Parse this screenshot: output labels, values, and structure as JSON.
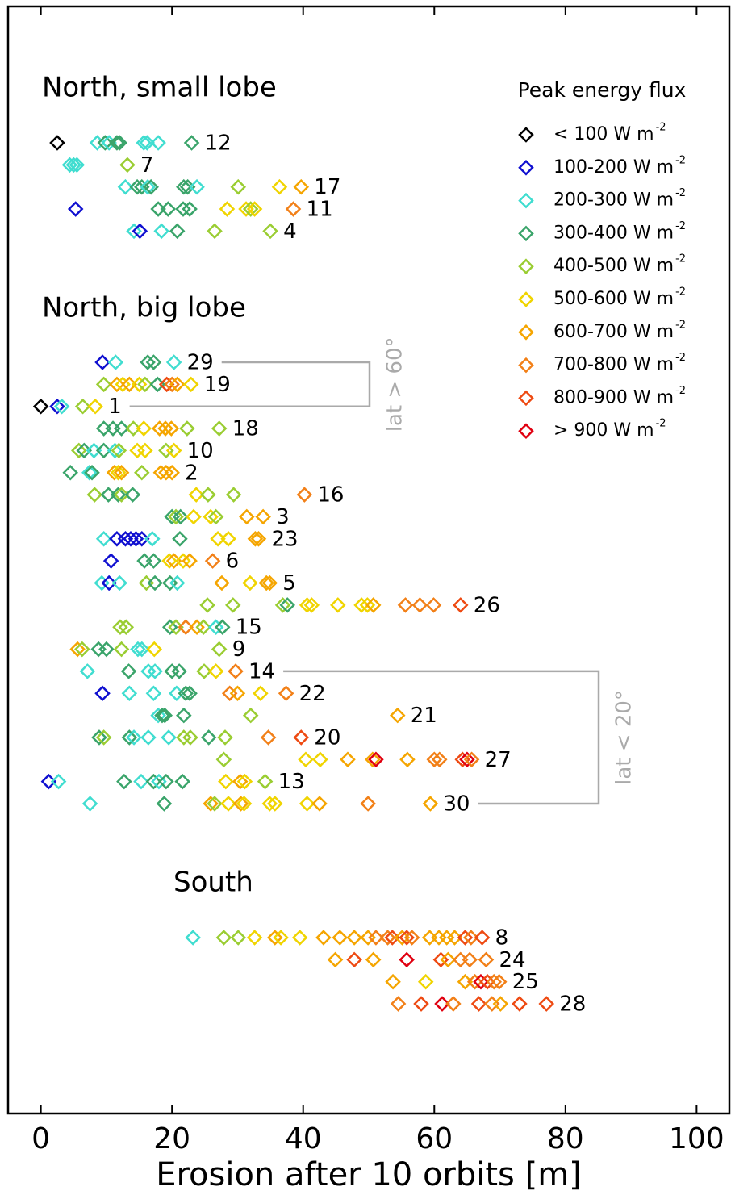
{
  "chart_data": {
    "type": "scatter",
    "xlabel": "Erosion after 10 orbits [m]",
    "xlim": [
      -5,
      105
    ],
    "xticks": [
      0,
      20,
      40,
      60,
      80,
      100
    ],
    "legend": {
      "title": "Peak energy flux",
      "unit_exponent": "-2"
    },
    "series": [
      {
        "name": "< 100 W m",
        "color": "#000000"
      },
      {
        "name": "100-200 W m",
        "color": "#1010d0"
      },
      {
        "name": "200-300 W m",
        "color": "#40ddd0"
      },
      {
        "name": "300-400 W m",
        "color": "#3aa46a"
      },
      {
        "name": "400-500 W m",
        "color": "#9acd32"
      },
      {
        "name": "500-600 W m",
        "color": "#f0d400"
      },
      {
        "name": "600-700 W m",
        "color": "#f5a500"
      },
      {
        "name": "700-800 W m",
        "color": "#f28018"
      },
      {
        "name": "800-900 W m",
        "color": "#ee4a12"
      },
      {
        "name": "> 900 W m",
        "color": "#e00010"
      }
    ],
    "groups": [
      {
        "title": "North, small lobe",
        "rows": [
          {
            "label": "12",
            "x": [
              2.5,
              8.6,
              9.8,
              10.4,
              11.6,
              12,
              15.7,
              16.2,
              17.9,
              23
            ],
            "flux": [
              0,
              2,
              3,
              2,
              3,
              3,
              2,
              2,
              2,
              3
            ]
          },
          {
            "label": "7",
            "x": [
              4.4,
              5,
              5.5,
              13.2
            ],
            "flux": [
              2,
              2,
              2,
              4
            ]
          },
          {
            "label": "17",
            "x": [
              12.9,
              14.7,
              15.4,
              16.3,
              16.8,
              21.8,
              22.4,
              23.8,
              30.1,
              36.4,
              39.7
            ],
            "flux": [
              2,
              3,
              3,
              2,
              3,
              3,
              3,
              2,
              4,
              5,
              6
            ]
          },
          {
            "label": "11",
            "x": [
              5.3,
              17.9,
              19.4,
              21.7,
              22.7,
              28.4,
              31.3,
              32,
              32.6,
              38.5
            ],
            "flux": [
              1,
              3,
              3,
              3,
              3,
              5,
              5,
              4,
              5,
              7
            ]
          },
          {
            "label": "4",
            "x": [
              14.2,
              15.1,
              18.4,
              20.8,
              26.5,
              35
            ],
            "flux": [
              2,
              1,
              2,
              3,
              4,
              4
            ]
          }
        ]
      },
      {
        "title": "North, big lobe",
        "rows": [
          {
            "label": "29",
            "x": [
              9.4,
              11.4,
              16.3,
              17.2,
              20.3
            ],
            "flux": [
              1,
              2,
              3,
              3,
              2
            ]
          },
          {
            "label": "19",
            "x": [
              9.6,
              11.6,
              12.5,
              13.5,
              15,
              15.9,
              17.8,
              19.2,
              20,
              20.8,
              22.9
            ],
            "flux": [
              4,
              6,
              5,
              6,
              5,
              4,
              3,
              8,
              7,
              6,
              5
            ]
          },
          {
            "label": "1",
            "x": [
              0,
              2.5,
              3.2,
              6.4,
              8.3
            ],
            "flux": [
              0,
              1,
              2,
              4,
              5
            ]
          },
          {
            "label": "18",
            "x": [
              9.6,
              11,
              12.3,
              14.1,
              15.7,
              18.1,
              19,
              19.9,
              22.3,
              27.2
            ],
            "flux": [
              3,
              3,
              3,
              4,
              5,
              6,
              6,
              6,
              4,
              4
            ]
          },
          {
            "label": "10",
            "x": [
              5.8,
              6.6,
              8.1,
              9.6,
              11.3,
              11.9,
              14.7,
              15.9,
              19.1,
              20.3
            ],
            "flux": [
              4,
              3,
              2,
              3,
              2,
              4,
              5,
              5,
              4,
              5
            ]
          },
          {
            "label": "2",
            "x": [
              4.5,
              7.4,
              7.8,
              11.2,
              11.8,
              12.3,
              15.4,
              18.3,
              19.1,
              20
            ],
            "flux": [
              3,
              2,
              3,
              6,
              5,
              6,
              4,
              6,
              6,
              6
            ]
          },
          {
            "label": "16",
            "x": [
              8.2,
              10.3,
              11.8,
              12.3,
              14,
              23.7,
              25.5,
              29.4,
              40.2
            ],
            "flux": [
              4,
              3,
              3,
              4,
              3,
              5,
              4,
              4,
              7
            ]
          },
          {
            "label": "3",
            "x": [
              20,
              20.6,
              21.3,
              23.3,
              25.9,
              26.7,
              31.4,
              33.9
            ],
            "flux": [
              3,
              4,
              3,
              5,
              5,
              4,
              6,
              6
            ]
          },
          {
            "label": "23",
            "x": [
              9.6,
              11.6,
              12.9,
              13.7,
              14.5,
              15.4,
              17,
              21.2,
              27,
              28.6,
              32.7,
              33.2
            ],
            "flux": [
              2,
              1,
              1,
              1,
              1,
              1,
              2,
              3,
              5,
              5,
              6,
              6
            ]
          },
          {
            "label": "6",
            "x": [
              10.7,
              15.8,
              17.2,
              19.6,
              20.3,
              21.7,
              22.7,
              26.2
            ],
            "flux": [
              1,
              3,
              3,
              5,
              6,
              5,
              6,
              7
            ]
          },
          {
            "label": "5",
            "x": [
              9.3,
              10.4,
              12,
              16.1,
              17.4,
              19.7,
              20.8,
              27.6,
              31.9,
              34.4,
              34.9
            ],
            "flux": [
              2,
              1,
              2,
              4,
              3,
              3,
              2,
              6,
              5,
              6,
              6
            ]
          },
          {
            "label": "26",
            "x": [
              25.4,
              29.3,
              36.9,
              37.6,
              40.6,
              41.3,
              45.3,
              48.9,
              49.8,
              50.7,
              55.6,
              57.8,
              59.9,
              64
            ],
            "flux": [
              4,
              4,
              4,
              3,
              5,
              5,
              5,
              5,
              5,
              6,
              7,
              7,
              7,
              8
            ]
          },
          {
            "label": "15",
            "x": [
              12.1,
              13,
              19.7,
              20.6,
              22.1,
              23.8,
              24.8,
              26.7,
              27.7
            ],
            "flux": [
              4,
              4,
              3,
              4,
              7,
              6,
              4,
              2,
              3
            ]
          },
          {
            "label": "9",
            "x": [
              5.6,
              6.3,
              8.8,
              10,
              12.3,
              14.8,
              15.4,
              17.3,
              27.2
            ],
            "flux": [
              6,
              4,
              3,
              3,
              4,
              2,
              2,
              5,
              4
            ]
          },
          {
            "label": "14",
            "x": [
              7.1,
              13.4,
              16.4,
              17.4,
              20,
              21.1,
              24.9,
              26.7,
              29.7
            ],
            "flux": [
              2,
              3,
              2,
              2,
              3,
              3,
              4,
              5,
              7
            ]
          },
          {
            "label": "22",
            "x": [
              9.4,
              13.5,
              17.2,
              20.7,
              22.1,
              22.7,
              28.8,
              30,
              33.5,
              37.4
            ],
            "flux": [
              1,
              2,
              2,
              2,
              3,
              3,
              7,
              6,
              5,
              7
            ]
          },
          {
            "label": "21",
            "x": [
              17.9,
              18.5,
              18.9,
              21.8,
              32,
              54.4
            ],
            "flux": [
              2,
              3,
              3,
              3,
              4,
              6
            ]
          },
          {
            "label": "20",
            "x": [
              8.9,
              9.6,
              13.5,
              14.2,
              16.4,
              19.5,
              21.8,
              22.8,
              25.6,
              28.1,
              34.7,
              39.7
            ],
            "flux": [
              3,
              4,
              3,
              2,
              2,
              2,
              4,
              4,
              3,
              4,
              7,
              8
            ]
          },
          {
            "label": "27",
            "x": [
              27.9,
              40.4,
              42.6,
              46.8,
              50.6,
              51.1,
              55.9,
              60,
              60.8,
              64.3,
              65,
              65.7
            ],
            "flux": [
              4,
              5,
              5,
              6,
              6,
              9,
              6,
              7,
              7,
              8,
              9,
              7
            ]
          },
          {
            "label": "13",
            "x": [
              1.2,
              2.7,
              12.7,
              15.3,
              17.2,
              18,
              19.1,
              21.6,
              28.2,
              30.4,
              31.1,
              34.2
            ],
            "flux": [
              1,
              2,
              3,
              2,
              3,
              2,
              3,
              3,
              5,
              6,
              5,
              4
            ]
          },
          {
            "label": "30",
            "x": [
              7.5,
              18.8,
              25.9,
              26.5,
              28.6,
              30.5,
              31,
              34.9,
              35.7,
              40.6,
              42.5,
              49.9,
              59.4
            ],
            "flux": [
              2,
              3,
              6,
              4,
              5,
              6,
              5,
              5,
              5,
              5,
              6,
              7,
              6
            ]
          }
        ]
      },
      {
        "title": "South",
        "rows": [
          {
            "label": "8",
            "x": [
              23.2,
              27.9,
              30.1,
              32.6,
              35.7,
              36.6,
              39.5,
              43.1,
              45.6,
              47.8,
              49.9,
              51.1,
              52.9,
              53.6,
              55.1,
              55.8,
              56.6,
              59.3,
              60.7,
              61.9,
              63.1,
              64.7,
              65.6,
              67.3
            ],
            "flux": [
              2,
              4,
              4,
              5,
              6,
              5,
              5,
              6,
              6,
              6,
              6,
              7,
              7,
              8,
              6,
              8,
              7,
              6,
              6,
              6,
              6,
              8,
              7,
              8
            ]
          },
          {
            "label": "24",
            "x": [
              44.9,
              47.8,
              50.7,
              55.8,
              61,
              62.1,
              64,
              65.4,
              67.9
            ],
            "flux": [
              6,
              8,
              6,
              9,
              8,
              6,
              7,
              7,
              7
            ]
          },
          {
            "label": "25",
            "x": [
              53.7,
              58.7,
              64.7,
              66.2,
              67.1,
              68.1,
              69.1,
              69.9
            ],
            "flux": [
              6,
              5,
              6,
              7,
              9,
              8,
              7,
              7
            ]
          },
          {
            "label": "28",
            "x": [
              54.5,
              58,
              61.2,
              62.9,
              66.8,
              68.8,
              70.1,
              73,
              77.1
            ],
            "flux": [
              7,
              8,
              9,
              7,
              8,
              7,
              6,
              8,
              8
            ]
          }
        ]
      }
    ],
    "brackets": [
      {
        "label": "lat > 60°",
        "rows": [
          "29",
          "1"
        ]
      },
      {
        "label": "lat < 20°",
        "rows": [
          "14",
          "30"
        ]
      }
    ]
  }
}
